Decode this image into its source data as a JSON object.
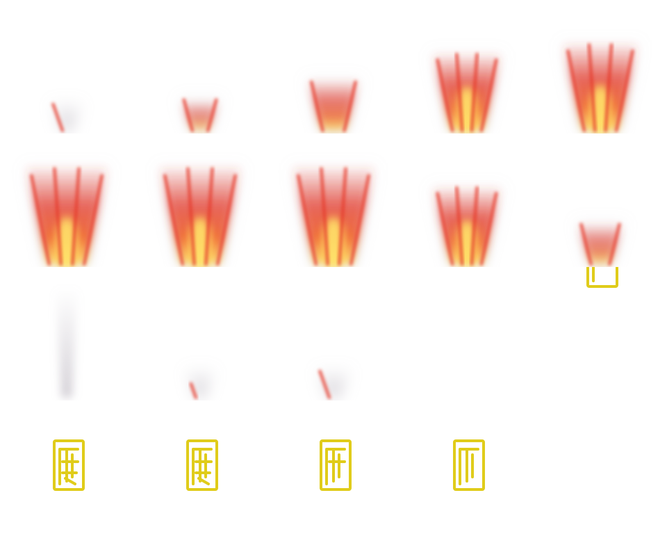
{
  "sheet": {
    "frames": [
      {
        "kind": "flame",
        "level": 0.15,
        "side": "left"
      },
      {
        "kind": "flame",
        "level": 0.35,
        "side": "both"
      },
      {
        "kind": "flame",
        "level": 0.55,
        "side": "both"
      },
      {
        "kind": "flame",
        "level": 0.8,
        "side": "both"
      },
      {
        "kind": "flame",
        "level": 0.9,
        "side": "both"
      },
      {
        "kind": "flame",
        "level": 1.0,
        "side": "both"
      },
      {
        "kind": "flame",
        "level": 1.0,
        "side": "both"
      },
      {
        "kind": "flame",
        "level": 1.0,
        "side": "both"
      },
      {
        "kind": "flame",
        "level": 0.8,
        "side": "both"
      },
      {
        "kind": "flame",
        "level": 0.45,
        "side": "both"
      },
      {
        "kind": "smoke",
        "level": 0.25,
        "side": "none"
      },
      {
        "kind": "flame",
        "level": 0.12,
        "side": "left-low"
      },
      {
        "kind": "flame",
        "level": 0.2,
        "side": "left"
      },
      {
        "kind": "empty",
        "level": 0,
        "side": "none"
      },
      {
        "kind": "seal",
        "level": 0.2,
        "side": "none"
      },
      {
        "kind": "seal",
        "level": 1.0,
        "side": "none"
      },
      {
        "kind": "seal",
        "level": 0.75,
        "side": "none"
      },
      {
        "kind": "seal",
        "level": 0.5,
        "side": "none"
      },
      {
        "kind": "seal",
        "level": 0.3,
        "side": "none"
      },
      {
        "kind": "empty",
        "level": 0,
        "side": "none"
      }
    ]
  },
  "colors": {
    "background": "#ffffff",
    "flame_red": "#e63a2c",
    "flame_orange": "#f26a2e",
    "flame_core": "#ffe36b",
    "smoke": "#b9b3bd",
    "seal_gold": "#e0cc1a"
  },
  "icons": {
    "flame": "flame-burst-icon",
    "smoke": "smoke-wisp-icon",
    "seal": "gold-seal-icon"
  }
}
